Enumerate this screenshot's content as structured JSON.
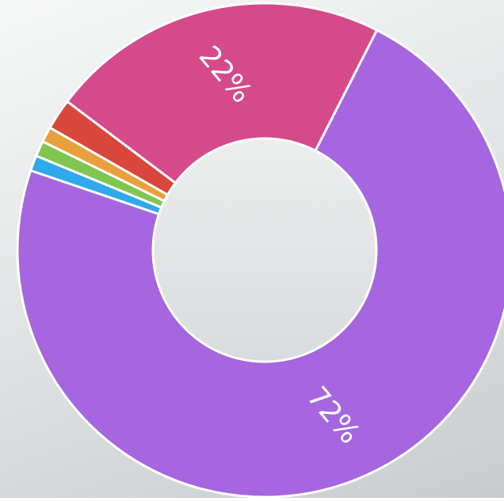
{
  "chart_data": {
    "type": "donut",
    "values": [
      72,
      1,
      1,
      1,
      2,
      22
    ],
    "value_labels": [
      "72%",
      null,
      null,
      null,
      null,
      "22%"
    ],
    "colors": [
      "#a566e0",
      "#2fa8ec",
      "#7ec650",
      "#e8a03c",
      "#d8463c",
      "#d54a8a"
    ]
  }
}
